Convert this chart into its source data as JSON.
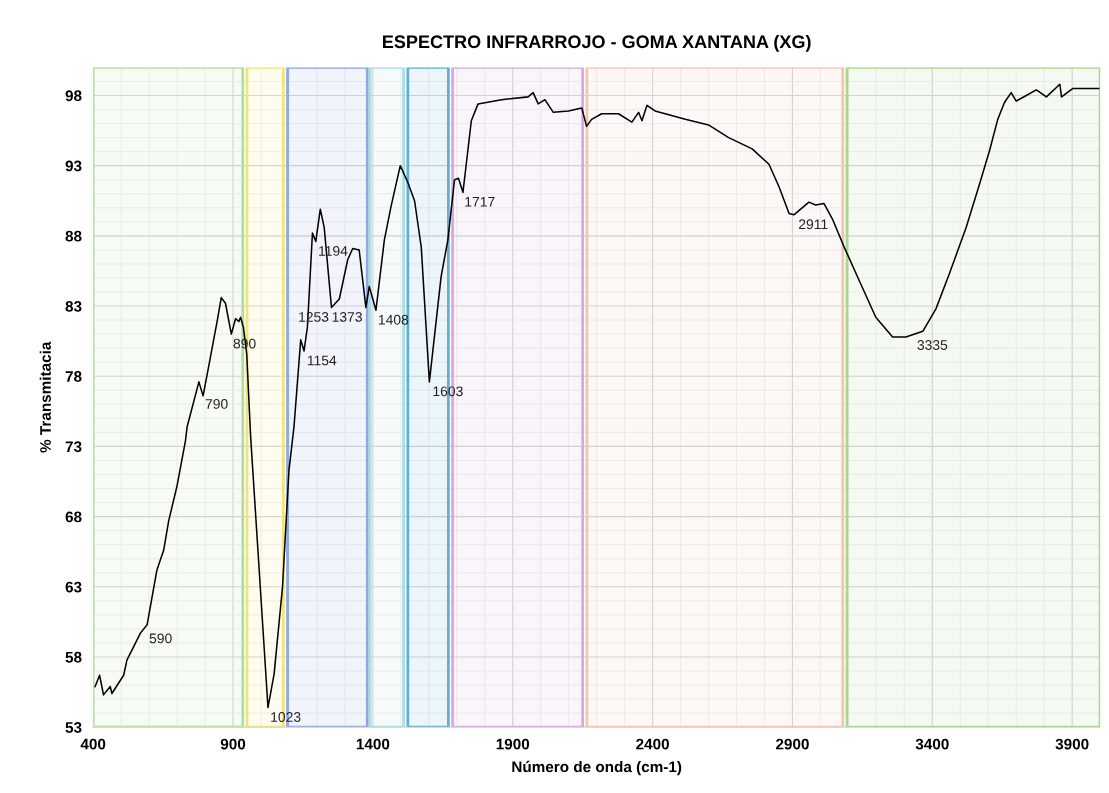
{
  "chart_data": {
    "type": "line",
    "title": "ESPECTRO INFRARROJO - GOMA XANTANA (XG)",
    "xlabel": "Número de onda (cm-1)",
    "ylabel": "% Transmitacia",
    "xlim": [
      400,
      4000
    ],
    "xticks": [
      400,
      900,
      1400,
      1900,
      2400,
      2900,
      3400,
      3900
    ],
    "ylim": [
      53,
      100
    ],
    "yticks": [
      53,
      58,
      63,
      68,
      73,
      78,
      83,
      88,
      93,
      98
    ],
    "grid": true,
    "marker": "none",
    "line_style": "solid",
    "series": [
      {
        "color": "#000000",
        "x": [
          407,
          423,
          437,
          461,
          467,
          509,
          521,
          539,
          569,
          593,
          628,
          652,
          670,
          700,
          730,
          736,
          778,
          793,
          813,
          844,
          858,
          873,
          894,
          909,
          921,
          927,
          937,
          949,
          963,
          999,
          1025,
          1047,
          1077,
          1100,
          1118,
          1142,
          1154,
          1166,
          1184,
          1196,
          1212,
          1226,
          1252,
          1280,
          1310,
          1328,
          1351,
          1375,
          1387,
          1411,
          1441,
          1465,
          1498,
          1525,
          1549,
          1573,
          1602,
          1644,
          1668,
          1692,
          1706,
          1722,
          1752,
          1776,
          1860,
          1955,
          1973,
          1991,
          2015,
          2045,
          2099,
          2147,
          2164,
          2182,
          2218,
          2278,
          2326,
          2350,
          2362,
          2380,
          2409,
          2517,
          2600,
          2672,
          2756,
          2816,
          2852,
          2888,
          2905,
          2959,
          2983,
          3013,
          3043,
          3085,
          3139,
          3198,
          3258,
          3306,
          3366,
          3413,
          3461,
          3521,
          3569,
          3605,
          3634,
          3658,
          3682,
          3700,
          3736,
          3772,
          3808,
          3856,
          3862,
          3903,
          3995
        ],
        "values": [
          55.9,
          56.7,
          55.3,
          55.9,
          55.4,
          56.7,
          57.8,
          58.5,
          59.7,
          60.3,
          64.2,
          65.6,
          67.7,
          70.2,
          73.4,
          74.4,
          77.6,
          76.6,
          78.7,
          82.0,
          83.6,
          83.2,
          81.0,
          82.1,
          81.9,
          82.2,
          81.5,
          79.6,
          73.7,
          62.5,
          54.4,
          56.8,
          63.0,
          71.3,
          74.4,
          80.6,
          79.8,
          81.5,
          88.2,
          87.6,
          89.9,
          88.6,
          82.9,
          83.5,
          86.3,
          87.1,
          87.0,
          82.9,
          84.4,
          82.7,
          87.7,
          90.1,
          93.0,
          91.8,
          90.5,
          87.2,
          77.6,
          85.1,
          87.7,
          92.0,
          92.1,
          91.1,
          96.2,
          97.4,
          97.7,
          97.9,
          98.2,
          97.4,
          97.7,
          96.8,
          96.9,
          97.1,
          95.8,
          96.3,
          96.7,
          96.7,
          96.1,
          96.8,
          96.2,
          97.3,
          96.9,
          96.3,
          95.9,
          95.0,
          94.2,
          93.1,
          91.5,
          89.6,
          89.5,
          90.4,
          90.2,
          90.3,
          89.2,
          87.2,
          84.8,
          82.2,
          80.8,
          80.8,
          81.2,
          82.8,
          85.3,
          88.6,
          91.7,
          94.1,
          96.3,
          97.5,
          98.2,
          97.6,
          98.0,
          98.4,
          97.9,
          98.8,
          97.9,
          98.5,
          98.5
        ]
      }
    ],
    "bands": [
      {
        "axis": "x",
        "from": 400,
        "to": 935,
        "color": "#b5dc9f"
      },
      {
        "axis": "x",
        "from": 950,
        "to": 1080,
        "color": "#f0e47a"
      },
      {
        "axis": "x",
        "from": 1095,
        "to": 1380,
        "color": "#8ea8e2"
      },
      {
        "axis": "x",
        "from": 1390,
        "to": 1510,
        "color": "#a9dde2"
      },
      {
        "axis": "x",
        "from": 1525,
        "to": 1670,
        "color": "#5fb0d2"
      },
      {
        "axis": "x",
        "from": 1685,
        "to": 2150,
        "color": "#d9a8e2"
      },
      {
        "axis": "x",
        "from": 2165,
        "to": 3080,
        "color": "#f2c6ac"
      },
      {
        "axis": "x",
        "from": 3095,
        "to": 4000,
        "color": "#a6d98c"
      }
    ],
    "annotations": [
      {
        "text": "590",
        "x": 590,
        "y": 60.0
      },
      {
        "text": "790",
        "x": 790,
        "y": 76.7
      },
      {
        "text": "890",
        "x": 890,
        "y": 81.0
      },
      {
        "text": "1023",
        "x": 1023,
        "y": 54.4
      },
      {
        "text": "1154",
        "x": 1154,
        "y": 79.8
      },
      {
        "text": "1194",
        "x": 1194,
        "y": 87.6
      },
      {
        "text": "1253",
        "x": 1253,
        "y": 82.9
      },
      {
        "text": "1373",
        "x": 1373,
        "y": 82.9
      },
      {
        "text": "1408",
        "x": 1408,
        "y": 82.7
      },
      {
        "text": "1603",
        "x": 1603,
        "y": 77.6
      },
      {
        "text": "1717",
        "x": 1717,
        "y": 91.1
      },
      {
        "text": "2911",
        "x": 2911,
        "y": 89.5
      },
      {
        "text": "3335",
        "x": 3335,
        "y": 80.9
      }
    ]
  }
}
